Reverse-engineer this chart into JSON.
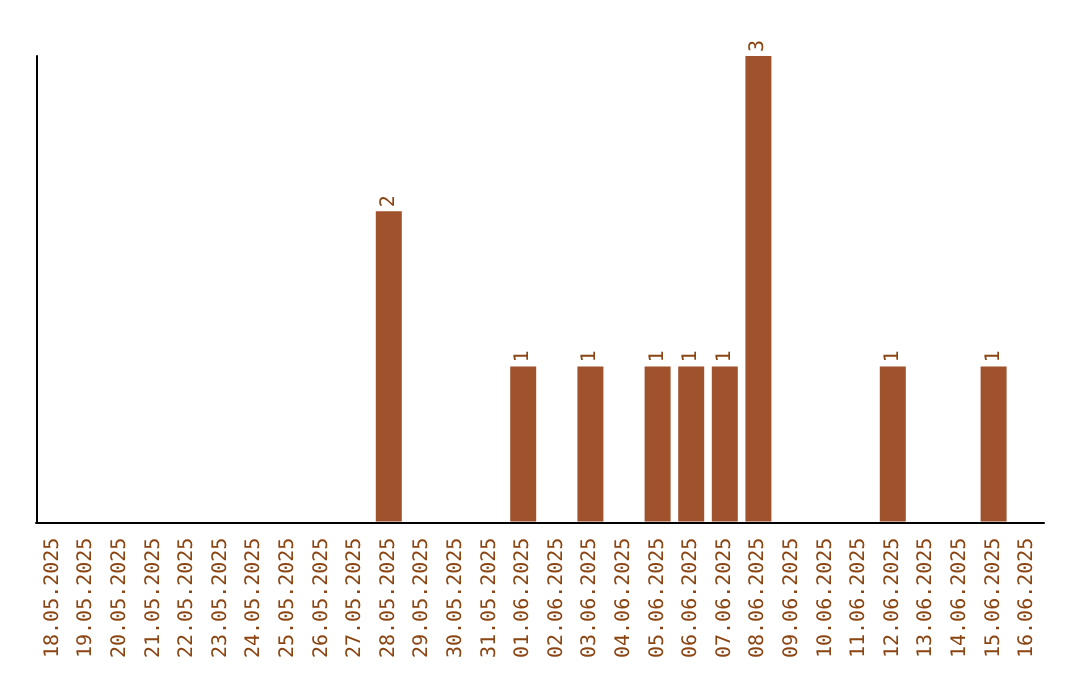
{
  "chart_data": {
    "type": "bar",
    "categories": [
      "18.05.2025",
      "19.05.2025",
      "20.05.2025",
      "21.05.2025",
      "22.05.2025",
      "23.05.2025",
      "24.05.2025",
      "25.05.2025",
      "26.05.2025",
      "27.05.2025",
      "28.05.2025",
      "29.05.2025",
      "30.05.2025",
      "31.05.2025",
      "01.06.2025",
      "02.06.2025",
      "03.06.2025",
      "04.06.2025",
      "05.06.2025",
      "06.06.2025",
      "07.06.2025",
      "08.06.2025",
      "09.06.2025",
      "10.06.2025",
      "11.06.2025",
      "12.06.2025",
      "13.06.2025",
      "14.06.2025",
      "15.06.2025",
      "16.06.2025"
    ],
    "values": [
      0,
      0,
      0,
      0,
      0,
      0,
      0,
      0,
      0,
      0,
      2,
      0,
      0,
      0,
      1,
      0,
      1,
      0,
      1,
      1,
      1,
      3,
      0,
      0,
      0,
      1,
      0,
      0,
      1,
      0
    ],
    "value_labels": [
      null,
      null,
      null,
      null,
      null,
      null,
      null,
      null,
      null,
      null,
      "2",
      null,
      null,
      null,
      "1",
      null,
      "1",
      null,
      "1",
      "1",
      "1",
      "3",
      null,
      null,
      null,
      "1",
      null,
      null,
      "1",
      null
    ],
    "color": "#a0522d",
    "tick_labels": "x"
  }
}
